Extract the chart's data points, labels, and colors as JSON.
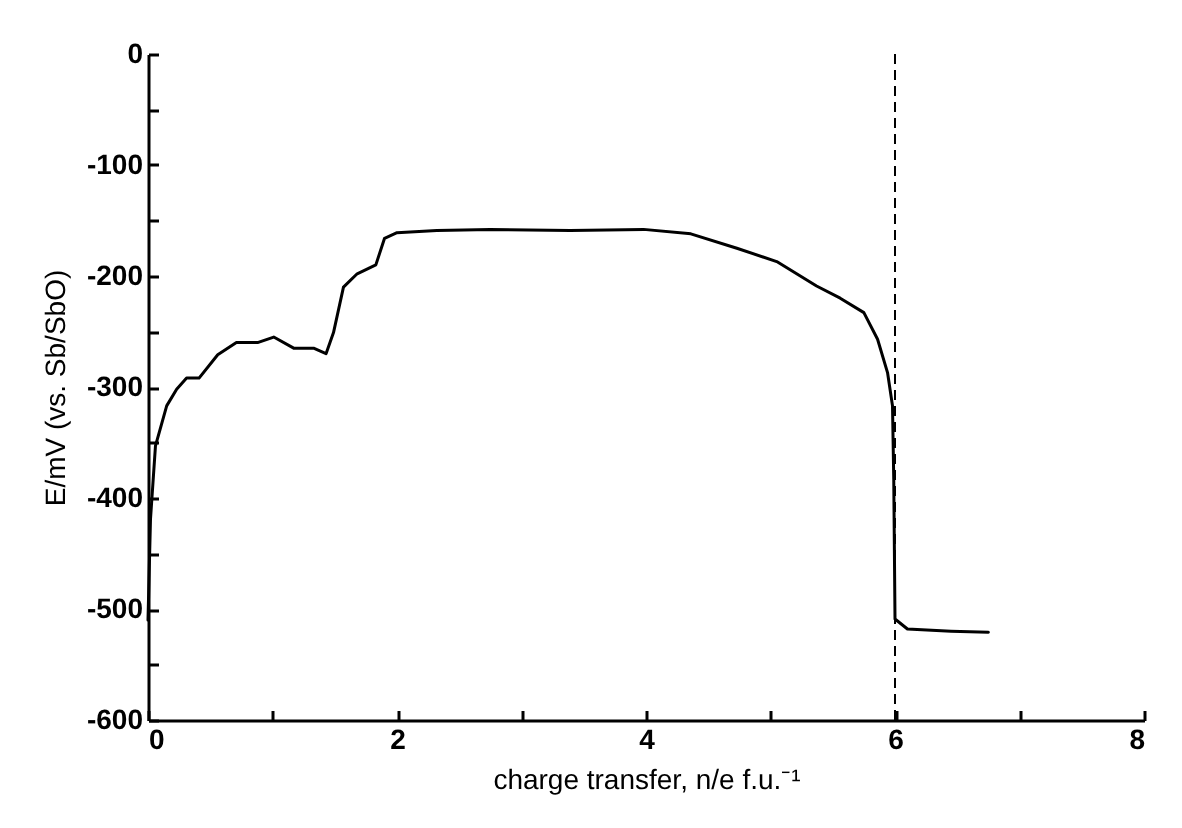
{
  "chart_data": {
    "type": "line",
    "xlabel": "charge transfer, n/e f.u.⁻¹",
    "ylabel": "E/mV (vs. Sb/SbO)",
    "xlim": [
      0,
      8
    ],
    "ylim": [
      -600,
      0
    ],
    "xticks": [
      0,
      {
        "value": 1,
        "label": null
      },
      2,
      {
        "value": 3,
        "label": null
      },
      4,
      {
        "value": 5,
        "label": null
      },
      6,
      {
        "value": 7,
        "label": null
      },
      8
    ],
    "yticks": [
      -600,
      {
        "value": -550,
        "label": null
      },
      -500,
      {
        "value": -450,
        "label": null
      },
      -400,
      {
        "value": -350,
        "label": null
      },
      -300,
      {
        "value": -250,
        "label": null
      },
      -200,
      {
        "value": -150,
        "label": null
      },
      -100,
      {
        "value": -50,
        "label": null
      },
      0
    ],
    "grid": false,
    "marker": "none",
    "line_style": "solid",
    "x": [
      0,
      0.02,
      0.06,
      0.15,
      0.23,
      0.31,
      0.41,
      0.56,
      0.71,
      0.88,
      1.01,
      1.17,
      1.33,
      1.43,
      1.49,
      1.57,
      1.68,
      1.83,
      1.9,
      2.0,
      2.32,
      2.75,
      3.39,
      3.98,
      4.36,
      4.73,
      5.05,
      5.37,
      5.56,
      5.75,
      5.86,
      5.94,
      5.98,
      5.99,
      6.0,
      6.1,
      6.45,
      6.75
    ],
    "series": [
      {
        "color": "#000000",
        "values": [
          -510,
          -419,
          -353,
          -317,
          -302,
          -292,
          -292,
          -271,
          -260,
          -260,
          -255,
          -265,
          -265,
          -270,
          -251,
          -210,
          -198,
          -190,
          -166,
          -161,
          -159,
          -158,
          -159,
          -158,
          -162,
          -175,
          -187,
          -209,
          -220,
          -233,
          -257,
          -287,
          -317,
          -383,
          -509,
          -518,
          -520,
          -521
        ]
      }
    ],
    "ref_lines": [
      {
        "axis": "x",
        "value": 6,
        "color": "#000000",
        "line_style": "dashed"
      }
    ]
  }
}
